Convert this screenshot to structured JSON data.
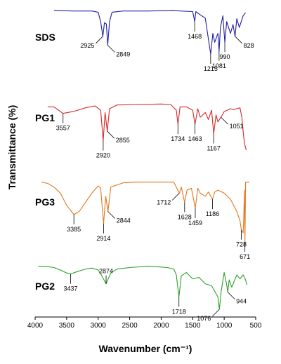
{
  "chart_data": {
    "type": "line",
    "title": "",
    "xlabel": "Wavenumber (cm⁻¹)",
    "ylabel": "Transmittance (%)",
    "xlim": [
      4000,
      500
    ],
    "x_ticks": [
      4000,
      3500,
      3000,
      2500,
      2000,
      1500,
      1000,
      500
    ],
    "series": [
      {
        "name": "SDS",
        "color": "#1f1fa8",
        "x": [
          3700,
          3400,
          3100,
          3000,
          2960,
          2925,
          2900,
          2870,
          2849,
          2820,
          2780,
          2600,
          2200,
          1800,
          1700,
          1500,
          1468,
          1450,
          1400,
          1300,
          1250,
          1215,
          1180,
          1150,
          1100,
          1081,
          1060,
          1020,
          990,
          960,
          900,
          860,
          828,
          800,
          760,
          700,
          660
        ],
        "y": [
          99,
          98,
          98,
          96,
          80,
          55,
          78,
          76,
          40,
          80,
          96,
          98,
          98,
          99,
          98,
          97,
          80,
          97,
          93,
          86,
          50,
          25,
          60,
          45,
          60,
          30,
          70,
          90,
          45,
          80,
          60,
          75,
          55,
          85,
          70,
          90,
          95
        ],
        "annotations": [
          {
            "label": "2925",
            "x": 2925,
            "side": "left"
          },
          {
            "label": "2849",
            "x": 2849,
            "side": "right"
          },
          {
            "label": "1468",
            "x": 1468,
            "side": "below"
          },
          {
            "label": "1215",
            "x": 1215,
            "side": "below"
          },
          {
            "label": "1081",
            "x": 1081,
            "side": "below"
          },
          {
            "label": "990",
            "x": 990,
            "side": "below"
          },
          {
            "label": "828",
            "x": 828,
            "side": "right"
          }
        ]
      },
      {
        "name": "PG1",
        "color": "#d62728",
        "x": [
          3800,
          3700,
          3557,
          3400,
          3200,
          3050,
          2960,
          2920,
          2890,
          2855,
          2820,
          2700,
          2400,
          2000,
          1850,
          1760,
          1734,
          1700,
          1600,
          1500,
          1463,
          1420,
          1380,
          1300,
          1250,
          1200,
          1167,
          1130,
          1100,
          1051,
          1000,
          950,
          900,
          850,
          800,
          750,
          720,
          700,
          680,
          660,
          650
        ],
        "y": [
          92,
          92,
          78,
          82,
          90,
          94,
          85,
          20,
          80,
          40,
          88,
          96,
          97,
          98,
          97,
          85,
          55,
          92,
          92,
          85,
          55,
          88,
          70,
          80,
          65,
          85,
          35,
          75,
          60,
          70,
          82,
          85,
          88,
          86,
          88,
          90,
          70,
          40,
          15,
          5,
          0
        ],
        "annotations": [
          {
            "label": "3557",
            "x": 3557,
            "side": "below"
          },
          {
            "label": "2920",
            "x": 2920,
            "side": "below"
          },
          {
            "label": "2855",
            "x": 2855,
            "side": "right"
          },
          {
            "label": "1734",
            "x": 1734,
            "side": "below"
          },
          {
            "label": "1463",
            "x": 1463,
            "side": "below"
          },
          {
            "label": "1167",
            "x": 1167,
            "side": "below"
          },
          {
            "label": "1051",
            "x": 1051,
            "side": "right"
          }
        ]
      },
      {
        "name": "PG3",
        "color": "#e3771f",
        "x": [
          3900,
          3800,
          3700,
          3600,
          3500,
          3385,
          3300,
          3200,
          3100,
          3000,
          2960,
          2914,
          2880,
          2844,
          2800,
          2600,
          2400,
          2000,
          1800,
          1712,
          1680,
          1628,
          1590,
          1520,
          1459,
          1420,
          1380,
          1300,
          1250,
          1186,
          1150,
          1100,
          1000,
          900,
          800,
          750,
          728,
          700,
          690,
          680,
          671,
          660,
          640,
          600
        ],
        "y": [
          98,
          96,
          90,
          80,
          60,
          45,
          50,
          65,
          80,
          92,
          88,
          30,
          75,
          50,
          90,
          97,
          98,
          98,
          98,
          80,
          90,
          65,
          85,
          88,
          55,
          88,
          80,
          75,
          82,
          70,
          82,
          85,
          80,
          70,
          50,
          35,
          20,
          15,
          40,
          85,
          0,
          98,
          98,
          98
        ],
        "annotations": [
          {
            "label": "3385",
            "x": 3385,
            "side": "below"
          },
          {
            "label": "2914",
            "x": 2914,
            "side": "below"
          },
          {
            "label": "2844",
            "x": 2844,
            "side": "right"
          },
          {
            "label": "1712",
            "x": 1712,
            "side": "left"
          },
          {
            "label": "1628",
            "x": 1628,
            "side": "below"
          },
          {
            "label": "1459",
            "x": 1459,
            "side": "below"
          },
          {
            "label": "1186",
            "x": 1186,
            "side": "below"
          },
          {
            "label": "728",
            "x": 728,
            "side": "below"
          },
          {
            "label": "671",
            "x": 671,
            "side": "below"
          }
        ]
      },
      {
        "name": "PG2",
        "color": "#2ca02c",
        "x": [
          3950,
          3800,
          3700,
          3600,
          3500,
          3437,
          3350,
          3200,
          3100,
          3000,
          2950,
          2874,
          2800,
          2700,
          2500,
          2200,
          2000,
          1900,
          1800,
          1760,
          1718,
          1680,
          1600,
          1500,
          1400,
          1300,
          1200,
          1100,
          1076,
          1050,
          1000,
          960,
          944,
          920,
          880,
          800,
          750,
          700,
          660,
          640
        ],
        "y": [
          98,
          97,
          95,
          90,
          84,
          82,
          86,
          92,
          94,
          90,
          80,
          62,
          84,
          92,
          95,
          98,
          96,
          95,
          92,
          80,
          35,
          78,
          85,
          72,
          75,
          62,
          58,
          35,
          10,
          45,
          85,
          60,
          45,
          70,
          55,
          80,
          72,
          80,
          70,
          60
        ],
        "annotations": [
          {
            "label": "3437",
            "x": 3437,
            "side": "below"
          },
          {
            "label": "2874",
            "x": 2874,
            "side": "above"
          },
          {
            "label": "1718",
            "x": 1718,
            "side": "below"
          },
          {
            "label": "1076",
            "x": 1076,
            "side": "left"
          },
          {
            "label": "944",
            "x": 944,
            "side": "right"
          }
        ]
      }
    ]
  }
}
